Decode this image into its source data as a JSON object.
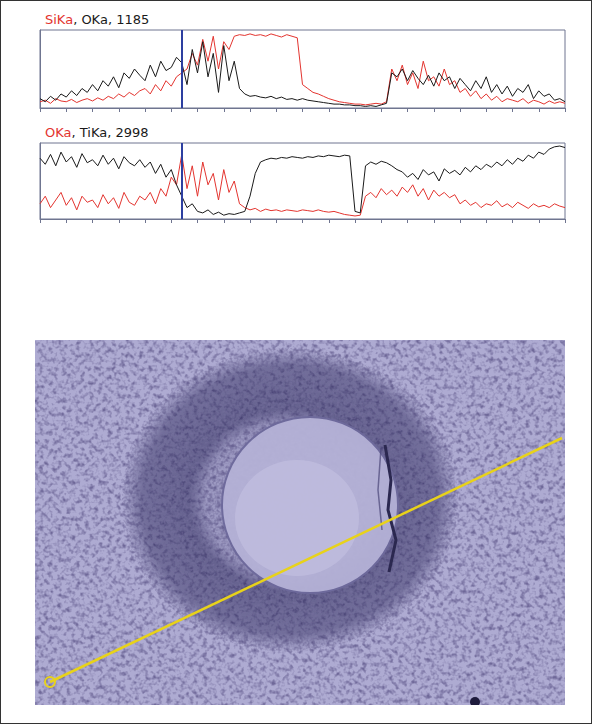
{
  "chart_data": [
    {
      "type": "line",
      "title": "SiKa, OKa, 1185",
      "tick_labels": false,
      "grid": false,
      "xlim": [
        0,
        100
      ],
      "xticks": [
        0,
        5,
        10,
        15,
        20,
        25,
        30,
        35,
        40,
        45,
        50,
        55,
        60,
        65,
        70,
        75,
        80,
        85,
        90,
        95,
        100
      ],
      "ylim": [
        0,
        100
      ],
      "cursor": 27,
      "x": [
        0,
        1,
        2,
        3,
        4,
        5,
        6,
        7,
        8,
        9,
        10,
        11,
        12,
        13,
        14,
        15,
        16,
        17,
        18,
        19,
        20,
        21,
        22,
        23,
        24,
        25,
        26,
        27,
        28,
        29,
        30,
        31,
        32,
        33,
        34,
        35,
        36,
        37,
        38,
        39,
        40,
        41,
        42,
        43,
        44,
        45,
        46,
        47,
        48,
        49,
        50,
        51,
        52,
        53,
        54,
        55,
        56,
        57,
        58,
        59,
        60,
        61,
        62,
        63,
        64,
        65,
        66,
        67,
        68,
        69,
        70,
        71,
        72,
        73,
        74,
        75,
        76,
        77,
        78,
        79,
        80,
        81,
        82,
        83,
        84,
        85,
        86,
        87,
        88,
        89,
        90,
        91,
        92,
        93,
        94,
        95,
        96,
        97,
        98,
        99,
        100
      ],
      "series": [
        {
          "name": "SiKa",
          "color": "#e3342f",
          "values": [
            8,
            10,
            6,
            12,
            9,
            8,
            11,
            7,
            10,
            12,
            9,
            13,
            10,
            15,
            12,
            18,
            14,
            20,
            16,
            22,
            25,
            18,
            30,
            22,
            35,
            28,
            40,
            45,
            50,
            70,
            55,
            88,
            60,
            92,
            50,
            85,
            75,
            92,
            94,
            93,
            95,
            93,
            94,
            92,
            95,
            93,
            91,
            94,
            92,
            90,
            30,
            25,
            20,
            18,
            15,
            12,
            10,
            8,
            7,
            6,
            5,
            5,
            4,
            5,
            6,
            5,
            8,
            50,
            35,
            55,
            30,
            45,
            25,
            60,
            35,
            40,
            28,
            50,
            30,
            35,
            20,
            25,
            15,
            22,
            12,
            18,
            10,
            15,
            8,
            12,
            10,
            8,
            12,
            6,
            10,
            8,
            5,
            9,
            6,
            8,
            6
          ]
        },
        {
          "name": "OKa",
          "color": "#1a1a1a",
          "values": [
            12,
            8,
            15,
            10,
            18,
            14,
            22,
            16,
            25,
            20,
            30,
            22,
            35,
            28,
            40,
            26,
            45,
            38,
            50,
            42,
            35,
            55,
            40,
            60,
            48,
            52,
            65,
            58,
            30,
            75,
            45,
            85,
            40,
            70,
            20,
            80,
            35,
            60,
            25,
            18,
            15,
            16,
            14,
            13,
            15,
            12,
            14,
            11,
            12,
            10,
            12,
            10,
            9,
            8,
            7,
            6,
            5,
            5,
            4,
            4,
            3,
            3,
            2,
            3,
            2,
            4,
            6,
            45,
            40,
            50,
            35,
            48,
            38,
            30,
            42,
            28,
            45,
            35,
            40,
            25,
            38,
            30,
            22,
            35,
            25,
            40,
            20,
            30,
            18,
            28,
            15,
            25,
            20,
            30,
            12,
            22,
            15,
            18,
            10,
            12,
            8
          ]
        }
      ]
    },
    {
      "type": "line",
      "title": "OKa, TiKa, 2998",
      "tick_labels": false,
      "grid": false,
      "xlim": [
        0,
        100
      ],
      "xticks": [
        0,
        5,
        10,
        15,
        20,
        25,
        30,
        35,
        40,
        45,
        50,
        55,
        60,
        65,
        70,
        75,
        80,
        85,
        90,
        95,
        100
      ],
      "ylim": [
        0,
        100
      ],
      "cursor": 27,
      "x": [
        0,
        1,
        2,
        3,
        4,
        5,
        6,
        7,
        8,
        9,
        10,
        11,
        12,
        13,
        14,
        15,
        16,
        17,
        18,
        19,
        20,
        21,
        22,
        23,
        24,
        25,
        26,
        27,
        28,
        29,
        30,
        31,
        32,
        33,
        34,
        35,
        36,
        37,
        38,
        39,
        40,
        41,
        42,
        43,
        44,
        45,
        46,
        47,
        48,
        49,
        50,
        51,
        52,
        53,
        54,
        55,
        56,
        57,
        58,
        59,
        60,
        61,
        62,
        63,
        64,
        65,
        66,
        67,
        68,
        69,
        70,
        71,
        72,
        73,
        74,
        75,
        76,
        77,
        78,
        79,
        80,
        81,
        82,
        83,
        84,
        85,
        86,
        87,
        88,
        89,
        90,
        91,
        92,
        93,
        94,
        95,
        96,
        97,
        98,
        99,
        100
      ],
      "series": [
        {
          "name": "OKa",
          "color": "#e3342f",
          "values": [
            20,
            30,
            15,
            25,
            35,
            18,
            28,
            12,
            30,
            22,
            25,
            15,
            32,
            20,
            28,
            14,
            35,
            22,
            18,
            30,
            25,
            35,
            20,
            40,
            30,
            55,
            45,
            85,
            40,
            70,
            30,
            75,
            45,
            60,
            25,
            65,
            35,
            50,
            20,
            15,
            12,
            14,
            10,
            13,
            11,
            12,
            10,
            12,
            11,
            10,
            12,
            11,
            10,
            12,
            10,
            9,
            10,
            8,
            6,
            5,
            4,
            5,
            30,
            35,
            28,
            40,
            32,
            38,
            30,
            42,
            35,
            45,
            30,
            40,
            25,
            38,
            30,
            35,
            28,
            32,
            20,
            25,
            18,
            22,
            15,
            20,
            18,
            24,
            16,
            20,
            15,
            22,
            18,
            14,
            20,
            16,
            18,
            15,
            20,
            17,
            15
          ]
        },
        {
          "name": "TiKa",
          "color": "#1a1a1a",
          "values": [
            80,
            72,
            85,
            70,
            88,
            75,
            82,
            68,
            86,
            74,
            78,
            70,
            84,
            72,
            80,
            66,
            82,
            74,
            70,
            78,
            68,
            75,
            60,
            72,
            55,
            65,
            45,
            30,
            15,
            20,
            10,
            8,
            12,
            6,
            9,
            5,
            7,
            6,
            8,
            10,
            30,
            60,
            75,
            78,
            80,
            79,
            81,
            80,
            82,
            81,
            80,
            82,
            81,
            83,
            82,
            84,
            83,
            82,
            84,
            83,
            10,
            8,
            70,
            75,
            72,
            76,
            74,
            70,
            65,
            62,
            55,
            60,
            52,
            65,
            58,
            62,
            50,
            66,
            60,
            64,
            58,
            68,
            62,
            70,
            65,
            72,
            68,
            75,
            70,
            78,
            72,
            80,
            76,
            84,
            80,
            88,
            85,
            92,
            95,
            96,
            94
          ]
        }
      ]
    }
  ]
}
